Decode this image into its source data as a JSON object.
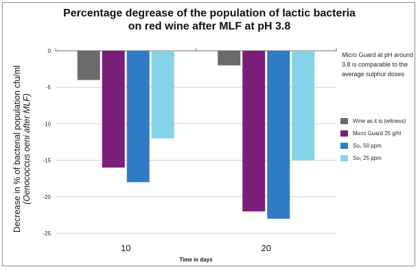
{
  "chart_data": {
    "type": "bar",
    "title_lines": [
      "Percentage degrease of the population of lactic bacteria",
      "on red wine after MLF at pH 3.8"
    ],
    "ylabel_lines": [
      "Decrease in % of bacterial population cfu/ml",
      "(Oenococcus oeni after MLF)"
    ],
    "xlabel": "Time in days",
    "categories": [
      "10",
      "20"
    ],
    "ylim": [
      -25,
      0
    ],
    "yticks": [
      0,
      -5,
      -10,
      -15,
      -20,
      -25
    ],
    "ytick_labels": [
      "0",
      "-5",
      "-10",
      "-15",
      "-20",
      "-25"
    ],
    "grid": true,
    "legend_position": "right",
    "annotation": "Micro Guard at pH around\n3.8 is comparable to the\naverage sulphur doses",
    "series": [
      {
        "name": "Wine as it is (witness)",
        "color": "#6b6b6b",
        "values": [
          -4,
          -2
        ]
      },
      {
        "name": "Micro Guard 25 g/hl",
        "color": "#7b1f7a",
        "values": [
          -16,
          -22
        ]
      },
      {
        "name": "So₂ 50 ppm",
        "color": "#2f7cc4",
        "values": [
          -18,
          -23
        ]
      },
      {
        "name": "So₂ 25 ppm",
        "color": "#85d3e8",
        "values": [
          -12,
          -15
        ]
      }
    ]
  }
}
